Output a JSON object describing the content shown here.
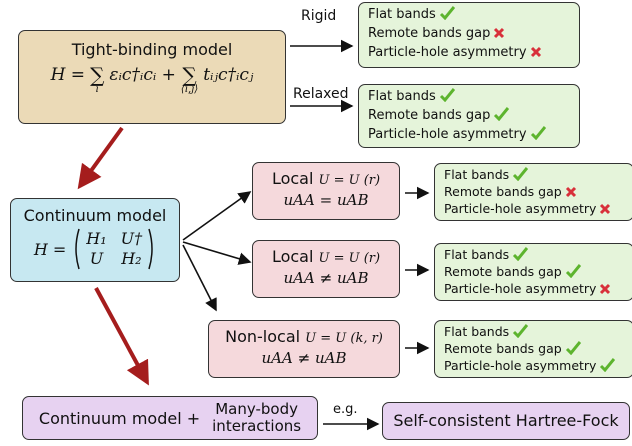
{
  "nodes": {
    "tight_binding": {
      "title": "Tight-binding model",
      "formula": [
        "H =",
        "∑",
        "i",
        "εᵢc†ᵢcᵢ +",
        "∑",
        "⟨i,j⟩",
        "tᵢⱼc†ᵢcⱼ"
      ]
    },
    "continuum": {
      "title": "Continuum model",
      "lhs": "H =",
      "matrix": [
        [
          "H₁",
          "U†"
        ],
        [
          "U",
          "H₂"
        ]
      ]
    },
    "local_1": {
      "title": "Local",
      "potential": "U = U (r)",
      "condition": "uAA = uAB"
    },
    "local_2": {
      "title": "Local",
      "potential": "U = U (r)",
      "condition": "uAA ≠ uAB"
    },
    "non_local": {
      "title": "Non-local",
      "potential": "U = U (k, r)",
      "condition": "uAA ≠ uAB"
    },
    "many_body": {
      "title": "Continuum model +",
      "detail": [
        "Many-body",
        "interactions"
      ]
    },
    "hartree_fock": {
      "title": "Self-consistent Hartree-Fock"
    }
  },
  "edges": {
    "rigid": "Rigid",
    "relaxed": "Relaxed",
    "example": "e.g."
  },
  "results": [
    {
      "items": [
        "Flat bands",
        "Remote bands gap",
        "Particle-hole asymmetry"
      ]
    },
    {
      "items": [
        "Flat bands",
        "Remote bands gap",
        "Particle-hole asymmetry"
      ]
    },
    {
      "items": [
        "Flat bands",
        "Remote bands gap",
        "Particle-hole asymmetry"
      ]
    },
    {
      "items": [
        "Flat bands",
        "Remote bands gap",
        "Particle-hole asymmetry"
      ]
    },
    {
      "items": [
        "Flat bands",
        "Remote bands gap",
        "Particle-hole asymmetry"
      ]
    }
  ]
}
